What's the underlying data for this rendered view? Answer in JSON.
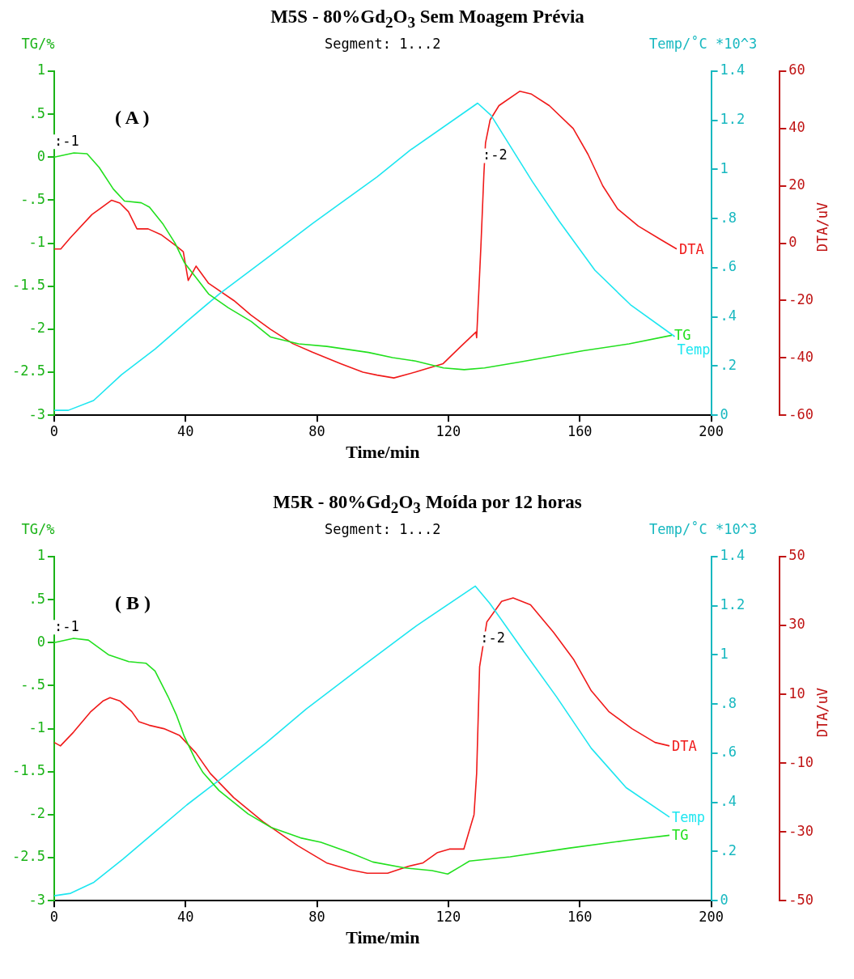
{
  "chart_data": [
    {
      "type": "line",
      "title": "M5S - 80%Gd$_{2}$O$_{3}$ Sem Moagem Prévia",
      "subtitle": "Segment: 1...2",
      "xlabel": "Time/min",
      "ylabel": "TG/%",
      "y2label": "Temp/˚C *10^3",
      "y3label": "DTA/uV",
      "annotations": [
        "( A )",
        ":-1",
        ":-2"
      ],
      "xlim": [
        0,
        200
      ],
      "xticks": [
        0,
        40,
        80,
        120,
        160,
        200
      ],
      "ylim": [
        -3,
        1
      ],
      "yticks": [
        -3,
        {
          "value": -2.5,
          "label": "-2.5"
        },
        -2,
        {
          "value": -1.5,
          "label": "-1.5"
        },
        -1,
        {
          "value": -0.5,
          "label": "-.5"
        },
        0,
        {
          "value": 0.5,
          "label": ".5"
        },
        1
      ],
      "y2lim": [
        0,
        1.4
      ],
      "y2ticks": [
        0,
        {
          "value": 0.2,
          "label": ".2"
        },
        {
          "value": 0.4,
          "label": ".4"
        },
        {
          "value": 0.6,
          "label": ".6"
        },
        {
          "value": 0.8,
          "label": ".8"
        },
        1,
        1.2,
        1.4
      ],
      "y3lim": [
        -60,
        60
      ],
      "y3ticks": [
        -60,
        -40,
        -20,
        0,
        20,
        40,
        60
      ],
      "legend": false,
      "grid": false,
      "marker": "none",
      "line_style": "solid",
      "series": [
        {
          "name": "TG",
          "color": "#22e01e",
          "axis": "y",
          "x": [
            0,
            6,
            10,
            13.7,
            18,
            21.4,
            26.5,
            29,
            33,
            36.8,
            39.7,
            43.6,
            47,
            53,
            60,
            65.8,
            74.4,
            83,
            95.7,
            103,
            110,
            118.5,
            124.8,
            131,
            142,
            161,
            175,
            188
          ],
          "values": [
            0,
            0.05,
            0.04,
            -0.12,
            -0.37,
            -0.51,
            -0.53,
            -0.58,
            -0.77,
            -1.0,
            -1.23,
            -1.42,
            -1.59,
            -1.75,
            -1.91,
            -2.09,
            -2.17,
            -2.2,
            -2.27,
            -2.33,
            -2.37,
            -2.45,
            -2.47,
            -2.45,
            -2.38,
            -2.25,
            -2.17,
            -2.07
          ]
        },
        {
          "name": "Temp",
          "color": "#1ee6f0",
          "axis": "y2",
          "x": [
            0,
            4.3,
            12,
            20.5,
            30.8,
            40.2,
            50.4,
            65.8,
            78.6,
            98.3,
            108.5,
            128.9,
            133,
            145.6,
            153.7,
            164.6,
            175.4,
            188.9
          ],
          "values": [
            0.02,
            0.02,
            0.06,
            0.165,
            0.27,
            0.38,
            0.495,
            0.65,
            0.78,
            0.97,
            1.08,
            1.27,
            1.22,
            0.95,
            0.79,
            0.59,
            0.45,
            0.32
          ]
        },
        {
          "name": "DTA",
          "color": "#f01a1a",
          "axis": "y3",
          "x": [
            0,
            2,
            5,
            11.5,
            17.5,
            20,
            22.6,
            25.2,
            28.6,
            32.5,
            37.2,
            39.3,
            40.8,
            43.2,
            47,
            54.7,
            59.8,
            65.8,
            72.6,
            78.6,
            87.2,
            94,
            98.3,
            103.4,
            109.8,
            118.4,
            123.8,
            128.4,
            128.6,
            129.9,
            130.8,
            131.3,
            132.7,
            135.4,
            141.7,
            145.3,
            150.7,
            158,
            162.5,
            167,
            171.5,
            177.8,
            185,
            189.5
          ],
          "values": [
            -2,
            -2,
            2,
            10,
            15,
            14,
            11,
            5,
            5,
            3,
            -1,
            -3,
            -13,
            -8,
            -14,
            -20,
            -25,
            -30,
            -35,
            -38,
            -42,
            -45,
            -46,
            -47,
            -45,
            -42,
            -36,
            -31,
            -33,
            -1,
            24,
            35,
            43,
            48,
            53,
            52,
            48,
            40,
            31,
            20,
            12,
            6,
            1,
            -2
          ]
        }
      ]
    },
    {
      "type": "line",
      "title": "M5R - 80%Gd$_{2}$O$_{3}$ Moída por 12 horas",
      "subtitle": "Segment: 1...2",
      "xlabel": "Time/min",
      "ylabel": "TG/%",
      "y2label": "Temp/˚C *10^3",
      "y3label": "DTA/uV",
      "annotations": [
        "( B )",
        ":-1",
        ":-2"
      ],
      "xlim": [
        0,
        200
      ],
      "xticks": [
        0,
        40,
        80,
        120,
        160,
        200
      ],
      "ylim": [
        -3,
        1
      ],
      "yticks": [
        -3,
        {
          "value": -2.5,
          "label": "-2.5"
        },
        -2,
        {
          "value": -1.5,
          "label": "-1.5"
        },
        -1,
        {
          "value": -0.5,
          "label": "-.5"
        },
        0,
        {
          "value": 0.5,
          "label": ".5"
        },
        1
      ],
      "y2lim": [
        0,
        1.4
      ],
      "y2ticks": [
        0,
        {
          "value": 0.2,
          "label": ".2"
        },
        {
          "value": 0.4,
          "label": ".4"
        },
        {
          "value": 0.6,
          "label": ".6"
        },
        {
          "value": 0.8,
          "label": ".8"
        },
        1,
        1.2,
        1.4
      ],
      "y3lim": [
        -50,
        50
      ],
      "y3ticks": [
        -50,
        -30,
        -10,
        10,
        30,
        50
      ],
      "legend": false,
      "grid": false,
      "marker": "none",
      "line_style": "solid",
      "series": [
        {
          "name": "TG",
          "color": "#22e01e",
          "axis": "y",
          "x": [
            0,
            5.9,
            10.4,
            16.5,
            22.7,
            28,
            30.7,
            34.7,
            37.3,
            39.6,
            43.1,
            45.3,
            50.2,
            59,
            66.1,
            75,
            81.2,
            90,
            97,
            106.8,
            115,
            119.8,
            123.8,
            126.4,
            138.8,
            156.5,
            174.1,
            187.3
          ],
          "values": [
            0,
            0.05,
            0.03,
            -0.14,
            -0.22,
            -0.24,
            -0.33,
            -0.63,
            -0.85,
            -1.09,
            -1.37,
            -1.51,
            -1.72,
            -1.99,
            -2.15,
            -2.27,
            -2.32,
            -2.44,
            -2.55,
            -2.62,
            -2.65,
            -2.69,
            -2.6,
            -2.54,
            -2.49,
            -2.39,
            -2.3,
            -2.24
          ]
        },
        {
          "name": "Temp",
          "color": "#1ee6f0",
          "axis": "y2",
          "x": [
            0,
            5,
            12.1,
            21,
            30.7,
            40.4,
            50.2,
            64.3,
            76.7,
            94.4,
            110.4,
            128.2,
            132.6,
            143.2,
            152.9,
            163.5,
            174.1,
            187.3
          ],
          "values": [
            0.02,
            0.03,
            0.075,
            0.17,
            0.28,
            0.39,
            0.49,
            0.64,
            0.78,
            0.96,
            1.12,
            1.28,
            1.21,
            1.01,
            0.83,
            0.62,
            0.46,
            0.34
          ]
        },
        {
          "name": "DTA",
          "color": "#f01a1a",
          "axis": "y3",
          "x": [
            0,
            1.9,
            5.9,
            11.2,
            14.8,
            17,
            20.1,
            23.6,
            25.8,
            28.9,
            33.4,
            38.2,
            43.1,
            47.5,
            54.6,
            63.5,
            74.1,
            82.9,
            90,
            95.3,
            101.5,
            107.8,
            112.3,
            116.7,
            120.3,
            124.7,
            127.8,
            128.6,
            129.5,
            131.7,
            136.2,
            139.7,
            145,
            152,
            158.2,
            163.5,
            168.8,
            175.9,
            182.9,
            187.3
          ],
          "values": [
            -4,
            -5,
            -1,
            5,
            8,
            9,
            8,
            5,
            2,
            1,
            0,
            -2,
            -7,
            -13,
            -20,
            -27,
            -34,
            -39,
            -41,
            -42,
            -42,
            -40,
            -39,
            -36,
            -35,
            -35,
            -25,
            -13,
            18,
            31,
            37,
            38,
            36,
            28,
            20,
            11,
            5,
            0,
            -4,
            -5
          ]
        }
      ]
    }
  ]
}
